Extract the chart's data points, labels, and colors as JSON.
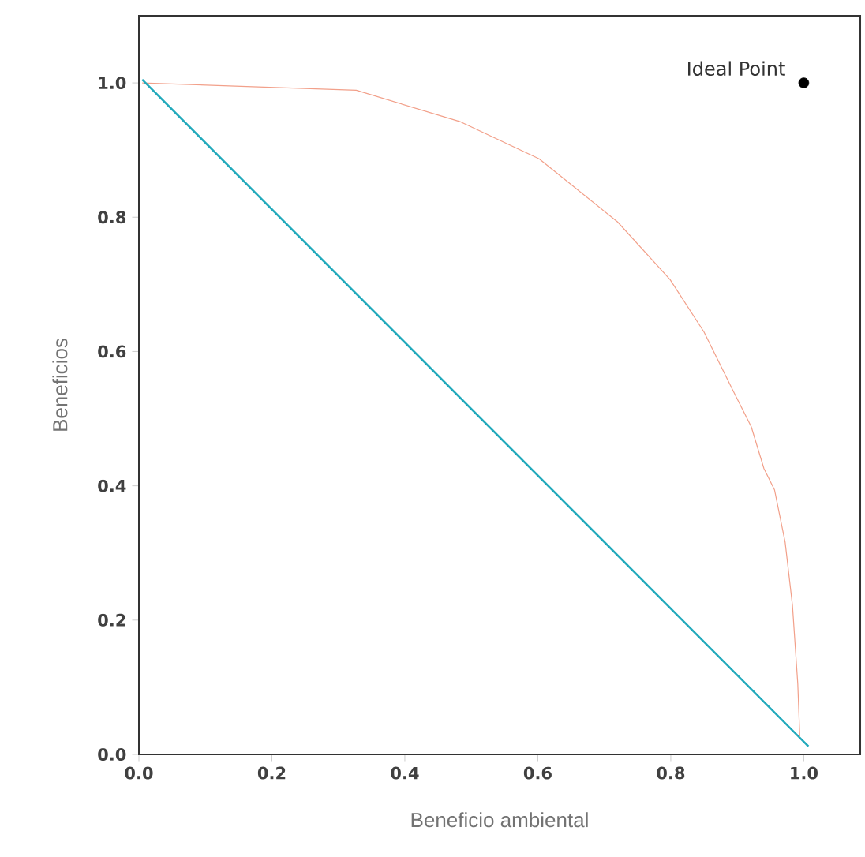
{
  "chart_data": {
    "type": "line",
    "xlabel": "Beneficio ambiental",
    "ylabel": "Beneficios",
    "xlim": [
      0,
      1.085
    ],
    "ylim": [
      0,
      1.1
    ],
    "xticks": [
      {
        "value": 0,
        "label": "0.0"
      },
      {
        "value": 0.2,
        "label": "0.2"
      },
      {
        "value": 0.4,
        "label": "0.4"
      },
      {
        "value": 0.6,
        "label": "0.6"
      },
      {
        "value": 0.8,
        "label": "0.8"
      },
      {
        "value": 1,
        "label": "1.0"
      }
    ],
    "yticks": [
      {
        "value": 0,
        "label": "0.0"
      },
      {
        "value": 0.2,
        "label": "0.2"
      },
      {
        "value": 0.4,
        "label": "0.4"
      },
      {
        "value": 0.6,
        "label": "0.6"
      },
      {
        "value": 0.8,
        "label": "0.8"
      },
      {
        "value": 1,
        "label": "1.0"
      }
    ],
    "grid": false,
    "series": [
      {
        "color": "#f2a08a",
        "x": [
          0.005,
          0.327,
          0.484,
          0.602,
          0.72,
          0.799,
          0.85,
          0.893,
          0.921,
          0.94,
          0.956,
          0.972,
          0.983,
          0.991,
          0.994
        ],
        "values": [
          1.0,
          0.989,
          0.942,
          0.887,
          0.793,
          0.707,
          0.629,
          0.543,
          0.488,
          0.426,
          0.394,
          0.316,
          0.222,
          0.105,
          0.027
        ]
      },
      {
        "color": "#21a9bb",
        "x": [
          0.005,
          1.007
        ],
        "values": [
          1.005,
          0.012
        ]
      },
      {
        "type": "scatter",
        "color": "#000000",
        "marker": "circle",
        "x": [
          1.0
        ],
        "values": [
          1.0
        ]
      }
    ],
    "annotations": [
      {
        "text": "Ideal Point",
        "x": 1.0,
        "y": 1.0
      }
    ]
  }
}
